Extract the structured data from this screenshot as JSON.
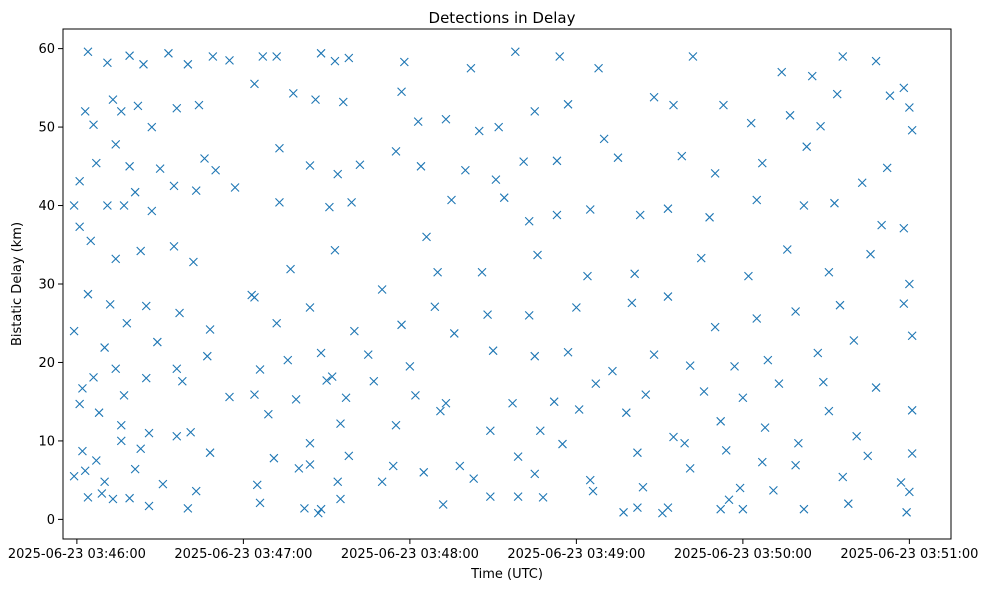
{
  "chart_data": {
    "type": "scatter",
    "title": "Detections in Delay",
    "xlabel": "Time (UTC)",
    "ylabel": "Bistatic Delay (km)",
    "marker": "x",
    "grid": false,
    "legend": "none",
    "colors": {
      "marker": "#1f77b4",
      "axes": "#000000",
      "background": "#ffffff"
    },
    "x_axis": {
      "kind": "time",
      "min": "2025-06-23 03:45:55",
      "max": "2025-06-23 03:51:15",
      "ticks": [
        "2025-06-23 03:46:00",
        "2025-06-23 03:47:00",
        "2025-06-23 03:48:00",
        "2025-06-23 03:49:00",
        "2025-06-23 03:50:00",
        "2025-06-23 03:51:00"
      ]
    },
    "y_axis": {
      "min": -2.5,
      "max": 62.5,
      "ticks": [
        "0",
        "10",
        "20",
        "30",
        "40",
        "50",
        "60"
      ]
    },
    "points": [
      [
        "2025-06-23 03:46:04",
        59.6
      ],
      [
        "2025-06-23 03:46:11",
        58.2
      ],
      [
        "2025-06-23 03:46:19",
        59.1
      ],
      [
        "2025-06-23 03:46:24",
        58.0
      ],
      [
        "2025-06-23 03:46:33",
        59.4
      ],
      [
        "2025-06-23 03:46:40",
        58.0
      ],
      [
        "2025-06-23 03:46:49",
        59.0
      ],
      [
        "2025-06-23 03:46:55",
        58.5
      ],
      [
        "2025-06-23 03:47:07",
        59.0
      ],
      [
        "2025-06-23 03:47:12",
        59.0
      ],
      [
        "2025-06-23 03:47:28",
        59.4
      ],
      [
        "2025-06-23 03:47:33",
        58.4
      ],
      [
        "2025-06-23 03:47:38",
        58.8
      ],
      [
        "2025-06-23 03:47:58",
        58.3
      ],
      [
        "2025-06-23 03:48:22",
        57.5
      ],
      [
        "2025-06-23 03:48:38",
        59.6
      ],
      [
        "2025-06-23 03:48:54",
        59.0
      ],
      [
        "2025-06-23 03:49:08",
        57.5
      ],
      [
        "2025-06-23 03:49:42",
        59.0
      ],
      [
        "2025-06-23 03:50:14",
        57.0
      ],
      [
        "2025-06-23 03:50:25",
        56.5
      ],
      [
        "2025-06-23 03:50:36",
        59.0
      ],
      [
        "2025-06-23 03:50:48",
        58.4
      ],
      [
        "2025-06-23 03:50:58",
        55.0
      ],
      [
        "2025-06-23 03:46:03",
        52.0
      ],
      [
        "2025-06-23 03:46:06",
        50.3
      ],
      [
        "2025-06-23 03:46:13",
        53.5
      ],
      [
        "2025-06-23 03:46:16",
        52.0
      ],
      [
        "2025-06-23 03:46:22",
        52.7
      ],
      [
        "2025-06-23 03:46:27",
        50.0
      ],
      [
        "2025-06-23 03:46:36",
        52.4
      ],
      [
        "2025-06-23 03:46:44",
        52.8
      ],
      [
        "2025-06-23 03:47:04",
        55.5
      ],
      [
        "2025-06-23 03:47:18",
        54.3
      ],
      [
        "2025-06-23 03:47:26",
        53.5
      ],
      [
        "2025-06-23 03:47:36",
        53.2
      ],
      [
        "2025-06-23 03:47:57",
        54.5
      ],
      [
        "2025-06-23 03:48:03",
        50.7
      ],
      [
        "2025-06-23 03:48:13",
        51.0
      ],
      [
        "2025-06-23 03:48:25",
        49.5
      ],
      [
        "2025-06-23 03:48:32",
        50.0
      ],
      [
        "2025-06-23 03:48:45",
        52.0
      ],
      [
        "2025-06-23 03:48:57",
        52.9
      ],
      [
        "2025-06-23 03:49:10",
        48.5
      ],
      [
        "2025-06-23 03:49:28",
        53.8
      ],
      [
        "2025-06-23 03:49:35",
        52.8
      ],
      [
        "2025-06-23 03:49:53",
        52.8
      ],
      [
        "2025-06-23 03:50:03",
        50.5
      ],
      [
        "2025-06-23 03:50:17",
        51.5
      ],
      [
        "2025-06-23 03:50:28",
        50.1
      ],
      [
        "2025-06-23 03:50:34",
        54.2
      ],
      [
        "2025-06-23 03:50:53",
        54.0
      ],
      [
        "2025-06-23 03:51:00",
        52.5
      ],
      [
        "2025-06-23 03:51:01",
        49.6
      ],
      [
        "2025-06-23 03:46:01",
        43.1
      ],
      [
        "2025-06-23 03:46:07",
        45.4
      ],
      [
        "2025-06-23 03:46:14",
        47.8
      ],
      [
        "2025-06-23 03:46:19",
        45.0
      ],
      [
        "2025-06-23 03:46:21",
        41.7
      ],
      [
        "2025-06-23 03:46:30",
        44.7
      ],
      [
        "2025-06-23 03:46:35",
        42.5
      ],
      [
        "2025-06-23 03:46:46",
        46.0
      ],
      [
        "2025-06-23 03:46:50",
        44.5
      ],
      [
        "2025-06-23 03:46:57",
        42.3
      ],
      [
        "2025-06-23 03:47:13",
        47.3
      ],
      [
        "2025-06-23 03:47:24",
        45.1
      ],
      [
        "2025-06-23 03:47:34",
        44.0
      ],
      [
        "2025-06-23 03:47:42",
        45.2
      ],
      [
        "2025-06-23 03:47:55",
        46.9
      ],
      [
        "2025-06-23 03:48:04",
        45.0
      ],
      [
        "2025-06-23 03:48:20",
        44.5
      ],
      [
        "2025-06-23 03:48:31",
        43.3
      ],
      [
        "2025-06-23 03:48:41",
        45.6
      ],
      [
        "2025-06-23 03:48:53",
        45.7
      ],
      [
        "2025-06-23 03:49:15",
        46.1
      ],
      [
        "2025-06-23 03:49:38",
        46.3
      ],
      [
        "2025-06-23 03:49:50",
        44.1
      ],
      [
        "2025-06-23 03:50:07",
        45.4
      ],
      [
        "2025-06-23 03:50:23",
        47.5
      ],
      [
        "2025-06-23 03:50:43",
        42.9
      ],
      [
        "2025-06-23 03:50:52",
        44.8
      ],
      [
        "2025-06-23 03:45:59",
        40.0
      ],
      [
        "2025-06-23 03:46:01",
        37.3
      ],
      [
        "2025-06-23 03:46:11",
        40.0
      ],
      [
        "2025-06-23 03:46:17",
        40.0
      ],
      [
        "2025-06-23 03:46:27",
        39.3
      ],
      [
        "2025-06-23 03:46:43",
        41.9
      ],
      [
        "2025-06-23 03:47:13",
        40.4
      ],
      [
        "2025-06-23 03:47:31",
        39.8
      ],
      [
        "2025-06-23 03:47:39",
        40.4
      ],
      [
        "2025-06-23 03:48:06",
        36.0
      ],
      [
        "2025-06-23 03:48:15",
        40.7
      ],
      [
        "2025-06-23 03:48:34",
        41.0
      ],
      [
        "2025-06-23 03:48:43",
        38.0
      ],
      [
        "2025-06-23 03:48:53",
        38.8
      ],
      [
        "2025-06-23 03:49:05",
        39.5
      ],
      [
        "2025-06-23 03:49:23",
        38.8
      ],
      [
        "2025-06-23 03:49:33",
        39.6
      ],
      [
        "2025-06-23 03:49:48",
        38.5
      ],
      [
        "2025-06-23 03:50:05",
        40.7
      ],
      [
        "2025-06-23 03:50:22",
        40.0
      ],
      [
        "2025-06-23 03:50:33",
        40.3
      ],
      [
        "2025-06-23 03:50:50",
        37.5
      ],
      [
        "2025-06-23 03:50:58",
        37.1
      ],
      [
        "2025-06-23 03:46:05",
        35.5
      ],
      [
        "2025-06-23 03:46:14",
        33.2
      ],
      [
        "2025-06-23 03:46:23",
        34.2
      ],
      [
        "2025-06-23 03:46:35",
        34.8
      ],
      [
        "2025-06-23 03:46:42",
        32.8
      ],
      [
        "2025-06-23 03:47:04",
        28.3
      ],
      [
        "2025-06-23 03:47:17",
        31.9
      ],
      [
        "2025-06-23 03:47:33",
        34.3
      ],
      [
        "2025-06-23 03:47:50",
        29.3
      ],
      [
        "2025-06-23 03:48:10",
        31.5
      ],
      [
        "2025-06-23 03:48:26",
        31.5
      ],
      [
        "2025-06-23 03:48:46",
        33.7
      ],
      [
        "2025-06-23 03:49:04",
        31.0
      ],
      [
        "2025-06-23 03:49:21",
        31.3
      ],
      [
        "2025-06-23 03:49:45",
        33.3
      ],
      [
        "2025-06-23 03:50:02",
        31.0
      ],
      [
        "2025-06-23 03:50:16",
        34.4
      ],
      [
        "2025-06-23 03:50:31",
        31.5
      ],
      [
        "2025-06-23 03:50:46",
        33.8
      ],
      [
        "2025-06-23 03:51:00",
        30.0
      ],
      [
        "2025-06-23 03:46:04",
        28.7
      ],
      [
        "2025-06-23 03:46:12",
        27.4
      ],
      [
        "2025-06-23 03:46:18",
        25.0
      ],
      [
        "2025-06-23 03:46:25",
        27.2
      ],
      [
        "2025-06-23 03:46:37",
        26.3
      ],
      [
        "2025-06-23 03:46:48",
        24.2
      ],
      [
        "2025-06-23 03:47:03",
        28.6
      ],
      [
        "2025-06-23 03:47:12",
        25.0
      ],
      [
        "2025-06-23 03:47:24",
        27.0
      ],
      [
        "2025-06-23 03:47:40",
        24.0
      ],
      [
        "2025-06-23 03:47:57",
        24.8
      ],
      [
        "2025-06-23 03:48:09",
        27.1
      ],
      [
        "2025-06-23 03:48:28",
        26.1
      ],
      [
        "2025-06-23 03:48:43",
        26.0
      ],
      [
        "2025-06-23 03:49:00",
        27.0
      ],
      [
        "2025-06-23 03:49:20",
        27.6
      ],
      [
        "2025-06-23 03:49:33",
        28.4
      ],
      [
        "2025-06-23 03:49:50",
        24.5
      ],
      [
        "2025-06-23 03:50:05",
        25.6
      ],
      [
        "2025-06-23 03:50:19",
        26.5
      ],
      [
        "2025-06-23 03:50:35",
        27.3
      ],
      [
        "2025-06-23 03:50:58",
        27.5
      ],
      [
        "2025-06-23 03:45:59",
        24.0
      ],
      [
        "2025-06-23 03:46:10",
        21.9
      ],
      [
        "2025-06-23 03:46:14",
        19.2
      ],
      [
        "2025-06-23 03:46:29",
        22.6
      ],
      [
        "2025-06-23 03:46:36",
        19.2
      ],
      [
        "2025-06-23 03:46:47",
        20.8
      ],
      [
        "2025-06-23 03:47:06",
        19.1
      ],
      [
        "2025-06-23 03:47:16",
        20.3
      ],
      [
        "2025-06-23 03:47:28",
        21.2
      ],
      [
        "2025-06-23 03:47:32",
        18.2
      ],
      [
        "2025-06-23 03:47:45",
        21.0
      ],
      [
        "2025-06-23 03:48:00",
        19.5
      ],
      [
        "2025-06-23 03:48:16",
        23.7
      ],
      [
        "2025-06-23 03:48:30",
        21.5
      ],
      [
        "2025-06-23 03:48:45",
        20.8
      ],
      [
        "2025-06-23 03:48:57",
        21.3
      ],
      [
        "2025-06-23 03:49:13",
        18.9
      ],
      [
        "2025-06-23 03:49:28",
        21.0
      ],
      [
        "2025-06-23 03:49:41",
        19.6
      ],
      [
        "2025-06-23 03:49:57",
        19.5
      ],
      [
        "2025-06-23 03:50:09",
        20.3
      ],
      [
        "2025-06-23 03:50:27",
        21.2
      ],
      [
        "2025-06-23 03:50:40",
        22.8
      ],
      [
        "2025-06-23 03:51:01",
        23.4
      ],
      [
        "2025-06-23 03:46:02",
        16.7
      ],
      [
        "2025-06-23 03:46:06",
        18.1
      ],
      [
        "2025-06-23 03:46:17",
        15.8
      ],
      [
        "2025-06-23 03:46:25",
        18.0
      ],
      [
        "2025-06-23 03:46:38",
        17.6
      ],
      [
        "2025-06-23 03:46:55",
        15.6
      ],
      [
        "2025-06-23 03:47:04",
        15.9
      ],
      [
        "2025-06-23 03:47:19",
        15.3
      ],
      [
        "2025-06-23 03:47:30",
        17.7
      ],
      [
        "2025-06-23 03:47:37",
        15.5
      ],
      [
        "2025-06-23 03:47:47",
        17.6
      ],
      [
        "2025-06-23 03:48:02",
        15.8
      ],
      [
        "2025-06-23 03:48:13",
        14.8
      ],
      [
        "2025-06-23 03:48:37",
        14.8
      ],
      [
        "2025-06-23 03:48:52",
        15.0
      ],
      [
        "2025-06-23 03:49:07",
        17.3
      ],
      [
        "2025-06-23 03:49:25",
        15.9
      ],
      [
        "2025-06-23 03:49:46",
        16.3
      ],
      [
        "2025-06-23 03:50:00",
        15.5
      ],
      [
        "2025-06-23 03:50:13",
        17.3
      ],
      [
        "2025-06-23 03:50:29",
        17.5
      ],
      [
        "2025-06-23 03:50:48",
        16.8
      ],
      [
        "2025-06-23 03:46:01",
        14.7
      ],
      [
        "2025-06-23 03:46:08",
        13.6
      ],
      [
        "2025-06-23 03:46:16",
        12.0
      ],
      [
        "2025-06-23 03:46:26",
        11.0
      ],
      [
        "2025-06-23 03:46:41",
        11.1
      ],
      [
        "2025-06-23 03:47:09",
        13.4
      ],
      [
        "2025-06-23 03:47:24",
        9.7
      ],
      [
        "2025-06-23 03:47:35",
        12.2
      ],
      [
        "2025-06-23 03:47:55",
        12.0
      ],
      [
        "2025-06-23 03:48:11",
        13.8
      ],
      [
        "2025-06-23 03:48:29",
        11.3
      ],
      [
        "2025-06-23 03:48:47",
        11.3
      ],
      [
        "2025-06-23 03:49:01",
        14.0
      ],
      [
        "2025-06-23 03:49:18",
        13.6
      ],
      [
        "2025-06-23 03:49:35",
        10.5
      ],
      [
        "2025-06-23 03:49:52",
        12.5
      ],
      [
        "2025-06-23 03:50:08",
        11.7
      ],
      [
        "2025-06-23 03:50:31",
        13.8
      ],
      [
        "2025-06-23 03:50:41",
        10.6
      ],
      [
        "2025-06-23 03:51:01",
        13.9
      ],
      [
        "2025-06-23 03:46:02",
        8.7
      ],
      [
        "2025-06-23 03:46:07",
        7.5
      ],
      [
        "2025-06-23 03:46:16",
        10.0
      ],
      [
        "2025-06-23 03:46:23",
        9.0
      ],
      [
        "2025-06-23 03:46:36",
        10.6
      ],
      [
        "2025-06-23 03:46:48",
        8.5
      ],
      [
        "2025-06-23 03:47:11",
        7.8
      ],
      [
        "2025-06-23 03:47:24",
        7.0
      ],
      [
        "2025-06-23 03:47:38",
        8.1
      ],
      [
        "2025-06-23 03:47:54",
        6.8
      ],
      [
        "2025-06-23 03:48:18",
        6.8
      ],
      [
        "2025-06-23 03:48:39",
        8.0
      ],
      [
        "2025-06-23 03:48:55",
        9.6
      ],
      [
        "2025-06-23 03:49:22",
        8.5
      ],
      [
        "2025-06-23 03:49:39",
        9.7
      ],
      [
        "2025-06-23 03:49:54",
        8.8
      ],
      [
        "2025-06-23 03:50:07",
        7.3
      ],
      [
        "2025-06-23 03:50:20",
        9.7
      ],
      [
        "2025-06-23 03:50:45",
        8.1
      ],
      [
        "2025-06-23 03:51:01",
        8.4
      ],
      [
        "2025-06-23 03:45:59",
        5.5
      ],
      [
        "2025-06-23 03:46:03",
        6.2
      ],
      [
        "2025-06-23 03:46:10",
        4.8
      ],
      [
        "2025-06-23 03:46:21",
        6.4
      ],
      [
        "2025-06-23 03:46:31",
        4.5
      ],
      [
        "2025-06-23 03:46:43",
        3.6
      ],
      [
        "2025-06-23 03:47:05",
        4.4
      ],
      [
        "2025-06-23 03:47:20",
        6.5
      ],
      [
        "2025-06-23 03:47:34",
        4.8
      ],
      [
        "2025-06-23 03:47:50",
        4.8
      ],
      [
        "2025-06-23 03:48:05",
        6.0
      ],
      [
        "2025-06-23 03:48:23",
        5.2
      ],
      [
        "2025-06-23 03:48:45",
        5.8
      ],
      [
        "2025-06-23 03:49:05",
        5.0
      ],
      [
        "2025-06-23 03:49:24",
        4.1
      ],
      [
        "2025-06-23 03:49:41",
        6.5
      ],
      [
        "2025-06-23 03:49:59",
        4.0
      ],
      [
        "2025-06-23 03:50:19",
        6.9
      ],
      [
        "2025-06-23 03:50:36",
        5.4
      ],
      [
        "2025-06-23 03:50:57",
        4.7
      ],
      [
        "2025-06-23 03:46:04",
        2.8
      ],
      [
        "2025-06-23 03:46:09",
        3.3
      ],
      [
        "2025-06-23 03:46:13",
        2.6
      ],
      [
        "2025-06-23 03:46:19",
        2.7
      ],
      [
        "2025-06-23 03:46:26",
        1.7
      ],
      [
        "2025-06-23 03:46:40",
        1.4
      ],
      [
        "2025-06-23 03:47:06",
        2.1
      ],
      [
        "2025-06-23 03:47:22",
        1.4
      ],
      [
        "2025-06-23 03:47:28",
        1.3
      ],
      [
        "2025-06-23 03:47:35",
        2.6
      ],
      [
        "2025-06-23 03:48:12",
        1.9
      ],
      [
        "2025-06-23 03:48:29",
        2.9
      ],
      [
        "2025-06-23 03:48:39",
        2.9
      ],
      [
        "2025-06-23 03:49:06",
        3.6
      ],
      [
        "2025-06-23 03:49:22",
        1.5
      ],
      [
        "2025-06-23 03:49:33",
        1.5
      ],
      [
        "2025-06-23 03:49:52",
        1.3
      ],
      [
        "2025-06-23 03:50:00",
        1.3
      ],
      [
        "2025-06-23 03:50:22",
        1.3
      ],
      [
        "2025-06-23 03:50:38",
        2.0
      ],
      [
        "2025-06-23 03:50:59",
        0.9
      ],
      [
        "2025-06-23 03:51:00",
        3.5
      ],
      [
        "2025-06-23 03:49:17",
        0.9
      ],
      [
        "2025-06-23 03:47:27",
        0.8
      ],
      [
        "2025-06-23 03:49:31",
        0.8
      ],
      [
        "2025-06-23 03:49:55",
        2.5
      ],
      [
        "2025-06-23 03:48:48",
        2.8
      ],
      [
        "2025-06-23 03:50:11",
        3.7
      ]
    ]
  }
}
